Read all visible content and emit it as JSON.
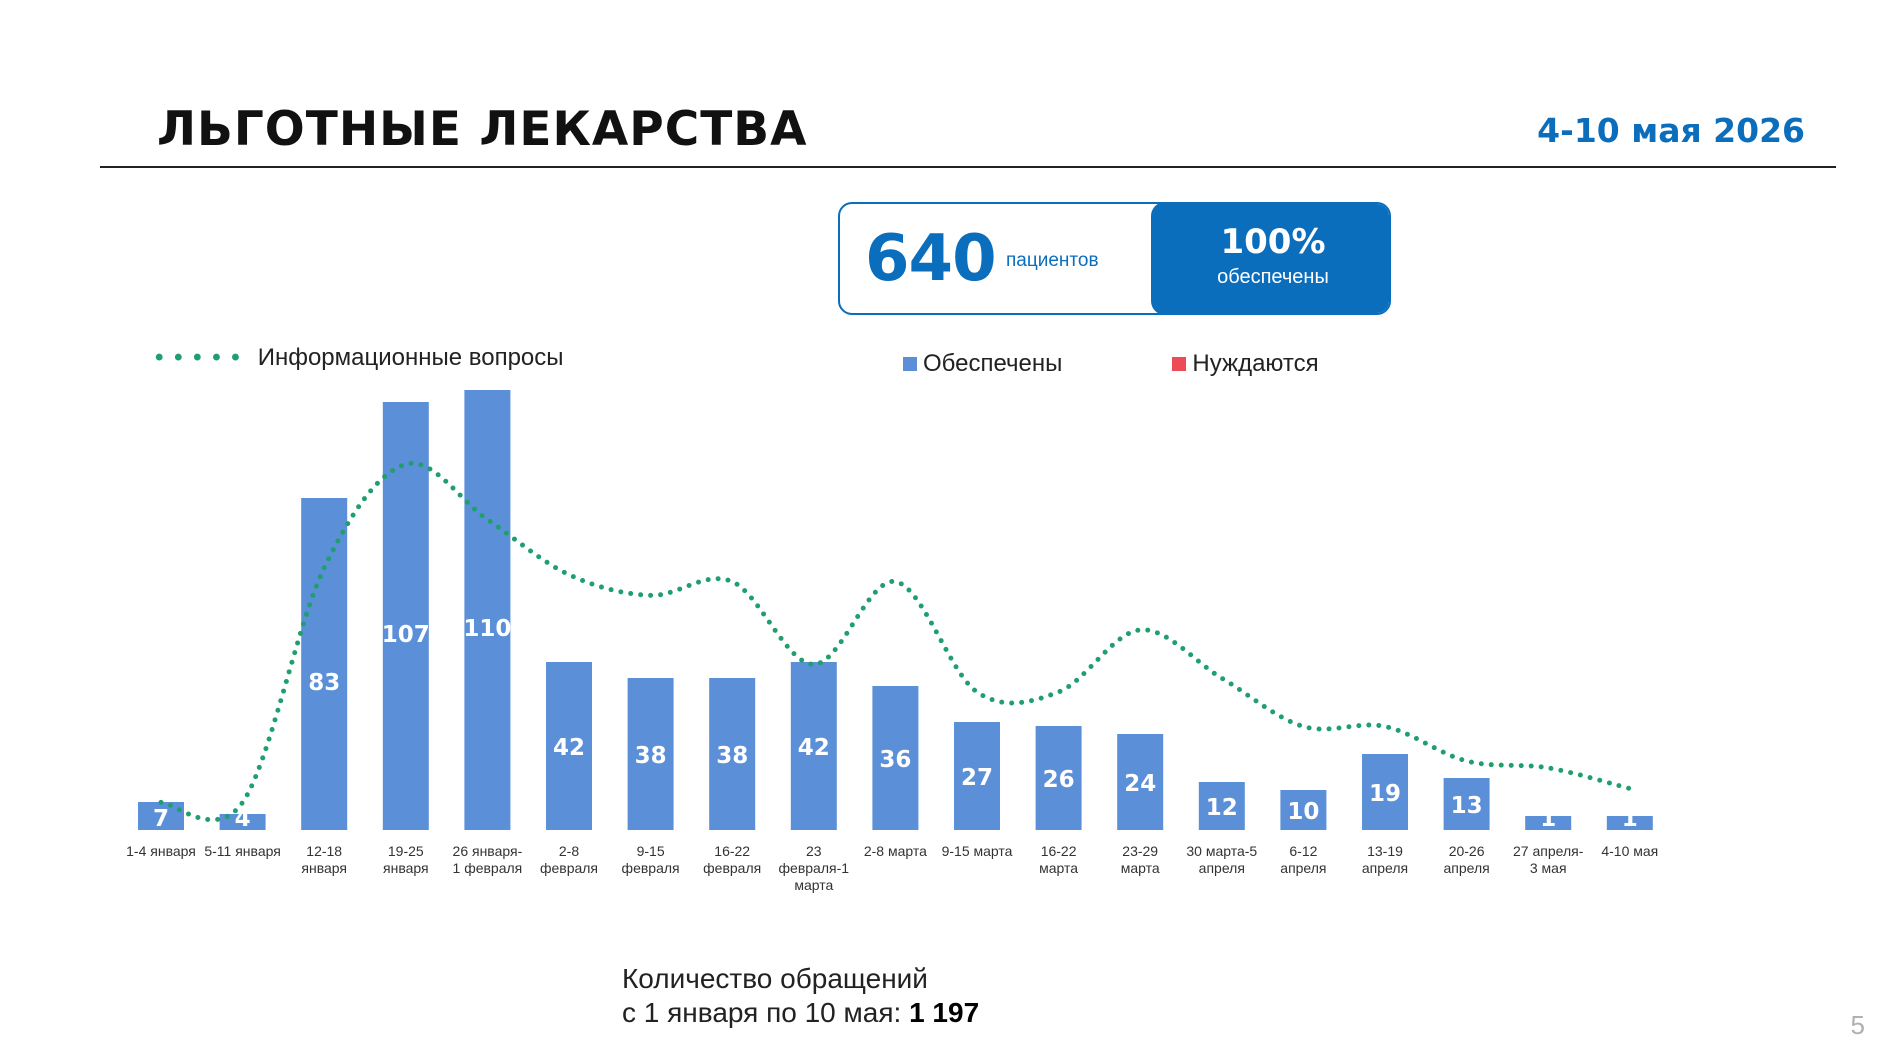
{
  "header": {
    "title": "ЛЬГОТНЫЕ ЛЕКАРСТВА",
    "date": "4-10 мая 2026"
  },
  "stat": {
    "patients": "640",
    "patients_unit": "пациентов",
    "percent": "100%",
    "percent_label": "обеспечены"
  },
  "legend": {
    "line_label": "Информационные вопросы",
    "provided_label": "Обеспечены",
    "needed_label": "Нуждаются"
  },
  "colors": {
    "bar": "#5b8fd8",
    "line": "#1f9e6e",
    "needed": "#ef4b56",
    "accent": "#0b6ebd"
  },
  "chart_data": {
    "type": "bar",
    "categories": [
      [
        "1-4 января"
      ],
      [
        "5-11 января"
      ],
      [
        "12-18",
        "января"
      ],
      [
        "19-25",
        "января"
      ],
      [
        "26 января-",
        "1 февраля"
      ],
      [
        "2-8",
        "февраля"
      ],
      [
        "9-15",
        "февраля"
      ],
      [
        "16-22",
        "февраля"
      ],
      [
        "23",
        "февраля-1",
        "марта"
      ],
      [
        "2-8 марта"
      ],
      [
        "9-15 марта"
      ],
      [
        "16-22",
        "марта"
      ],
      [
        "23-29",
        "марта"
      ],
      [
        "30 марта-5",
        "апреля"
      ],
      [
        "6-12",
        "апреля"
      ],
      [
        "13-19",
        "апреля"
      ],
      [
        "20-26",
        "апреля"
      ],
      [
        "27 апреля-",
        "3 мая"
      ],
      [
        "4-10 мая"
      ]
    ],
    "series": [
      {
        "name": "Обеспечены",
        "values": [
          7,
          4,
          83,
          107,
          110,
          42,
          38,
          38,
          42,
          36,
          27,
          26,
          24,
          12,
          10,
          19,
          13,
          1,
          1
        ]
      },
      {
        "name": "Информационные вопросы",
        "line": true,
        "values": [
          4,
          4,
          38,
          53,
          45,
          37,
          34,
          36,
          24,
          36,
          20,
          20,
          29,
          22,
          15,
          15,
          10,
          9,
          6
        ]
      }
    ]
  },
  "footer": {
    "line1": "Количество обращений",
    "line2_prefix": "с 1 января по 10 мая: ",
    "total": "1 197"
  },
  "page_number": "5"
}
